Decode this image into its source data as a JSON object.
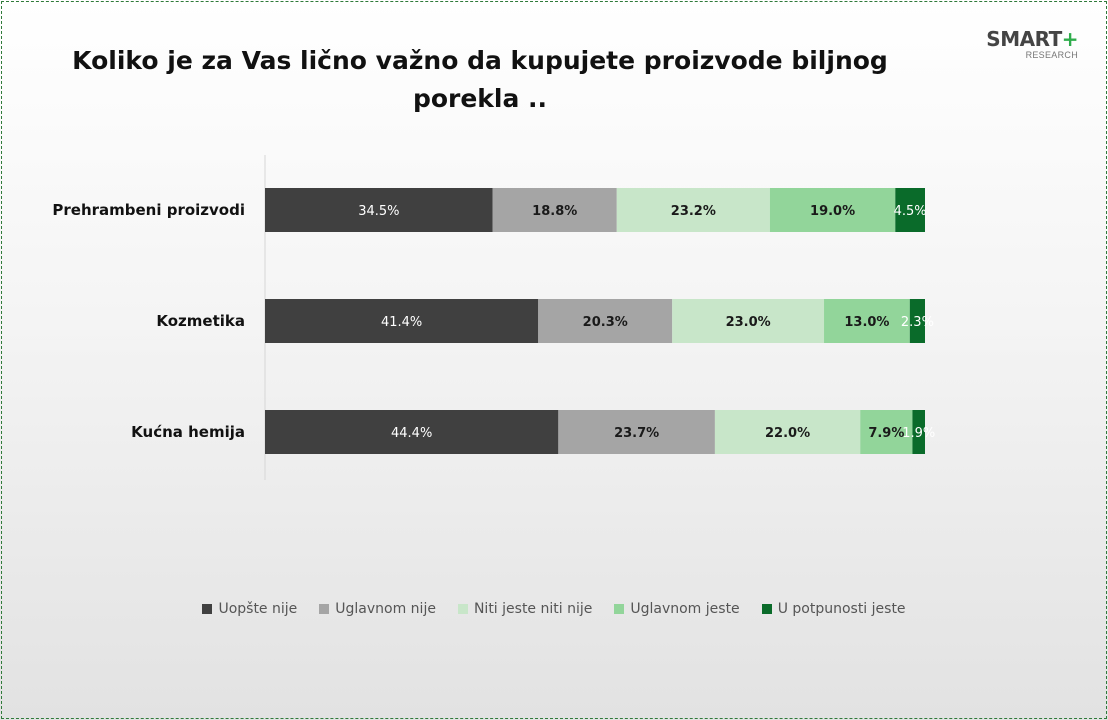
{
  "title_line1": "Koliko je za Vas lično važno da kupujete proizvode biljnog",
  "title_line2": "porekla ..",
  "logo": {
    "name": "SMART",
    "plus": "+",
    "sub": "RESEARCH"
  },
  "chart_data": {
    "type": "bar",
    "orientation": "horizontal",
    "stacked": true,
    "categories": [
      "Prehrambeni proizvodi",
      "Kozmetika",
      "Kućna hemija"
    ],
    "series": [
      {
        "name": "Uopšte nije",
        "values": [
          34.5,
          41.4,
          44.4
        ],
        "labels": [
          "34.5%",
          "41.4%",
          "44.4%"
        ],
        "color": "#404040",
        "label_color": "#ffffff",
        "label_bold": false
      },
      {
        "name": "Uglavnom nije",
        "values": [
          18.8,
          20.3,
          23.7
        ],
        "labels": [
          "18.8%",
          "20.3%",
          "23.7%"
        ],
        "color": "#a5a5a5",
        "label_color": "#1a1a1a",
        "label_bold": true
      },
      {
        "name": "Niti jeste niti nije",
        "values": [
          23.2,
          23.0,
          22.0
        ],
        "labels": [
          "23.2%",
          "23.0%",
          "22.0%"
        ],
        "color": "#c8e6c9",
        "label_color": "#1a1a1a",
        "label_bold": true
      },
      {
        "name": "Uglavnom jeste",
        "values": [
          19.0,
          13.0,
          7.9
        ],
        "labels": [
          "19.0%",
          "13.0%",
          "7.9%"
        ],
        "color": "#92d59a",
        "label_color": "#1a1a1a",
        "label_bold": true
      },
      {
        "name": "U potpunosti jeste",
        "values": [
          4.5,
          2.3,
          1.9
        ],
        "labels": [
          "4.5%",
          "2.3%",
          "1.9%"
        ],
        "color": "#0a6b2a",
        "label_color": "#ffffff",
        "label_bold": false
      }
    ],
    "xlim": [
      0,
      100
    ],
    "grid": false,
    "legend_position": "bottom"
  }
}
